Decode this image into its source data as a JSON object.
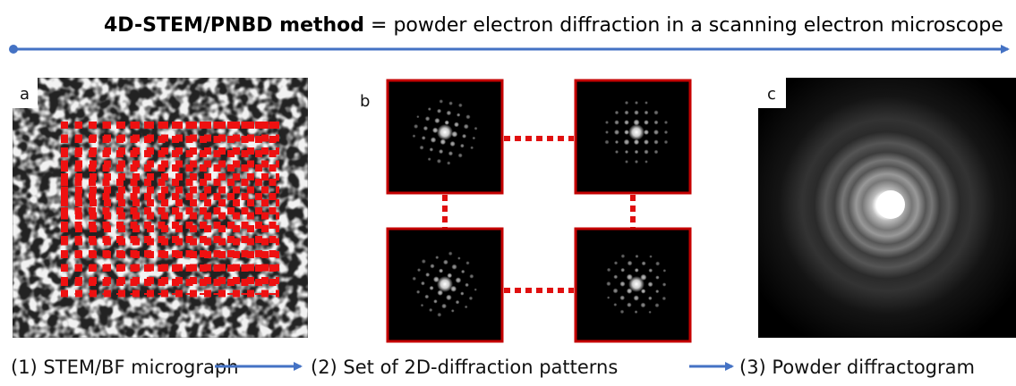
{
  "title": {
    "bold": "4D-STEM/PNBD method",
    "text": "= powder electron diffraction in a scanning electron microscope"
  },
  "panels": [
    {
      "label": "a"
    },
    {
      "label": "b"
    },
    {
      "label": "c"
    }
  ],
  "steps": [
    "(1) STEM/BF micrograph",
    "(2) Set of 2D-diffraction patterns",
    "(3) Powder diffractogram"
  ]
}
